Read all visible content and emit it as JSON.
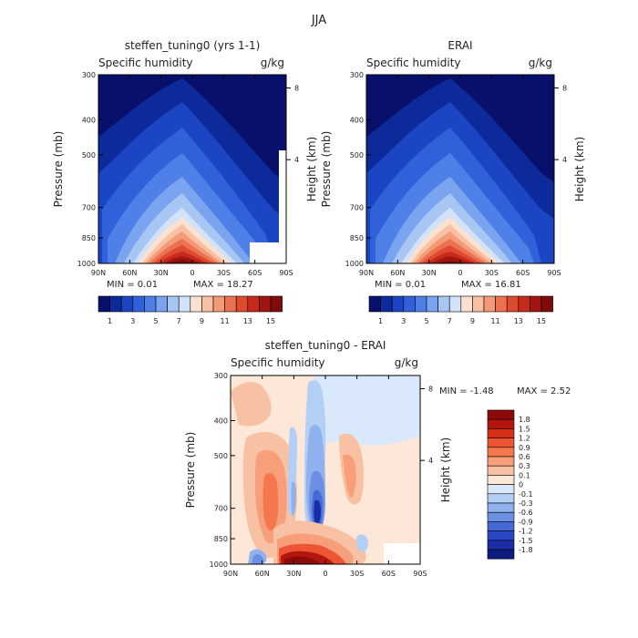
{
  "page_title": "JJA",
  "chart_data": [
    {
      "type": "heatmap",
      "title": "steffen_tuning0 (yrs 1-1)",
      "variable": "Specific humidity",
      "units": "g/kg",
      "ylabel": "Pressure (mb)",
      "y2label": "Height (km)",
      "x_ticks": [
        "90N",
        "60N",
        "30N",
        "0",
        "30S",
        "60S",
        "90S"
      ],
      "y_ticks": [
        "300",
        "400",
        "500",
        "700",
        "850",
        "1000"
      ],
      "y2_ticks": [
        "8",
        "4"
      ],
      "min_label": "MIN =    0.01",
      "max_label": "MAX =  18.27",
      "colorbar_labels": [
        "1",
        "3",
        "5",
        "7",
        "9",
        "11",
        "13",
        "15"
      ],
      "colors": [
        "#08106b",
        "#0d2a9a",
        "#1c45c4",
        "#3061da",
        "#4f80e8",
        "#7aa4ef",
        "#a8c6f4",
        "#d2e3f9",
        "#fbe1d0",
        "#f8c1a3",
        "#f39b77",
        "#ec7150",
        "#de4a2f",
        "#c52a1a",
        "#a21612",
        "#7f0b0b"
      ],
      "peak_value": 18.27
    },
    {
      "type": "heatmap",
      "title": "ERAI",
      "variable": "Specific humidity",
      "units": "g/kg",
      "ylabel": "Pressure (mb)",
      "y2label": "Height (km)",
      "x_ticks": [
        "90N",
        "60N",
        "30N",
        "0",
        "30S",
        "60S",
        "90S"
      ],
      "y_ticks": [
        "300",
        "400",
        "500",
        "700",
        "850",
        "1000"
      ],
      "y2_ticks": [
        "8",
        "4"
      ],
      "min_label": "MIN =    0.01",
      "max_label": "MAX =  16.81",
      "colorbar_labels": [
        "1",
        "3",
        "5",
        "7",
        "9",
        "11",
        "13",
        "15"
      ],
      "peak_value": 16.81
    },
    {
      "type": "heatmap",
      "title": "steffen_tuning0 - ERAI",
      "variable": "Specific humidity",
      "units": "g/kg",
      "ylabel": "Pressure (mb)",
      "y2label": "Height (km)",
      "x_ticks": [
        "90N",
        "60N",
        "30N",
        "0",
        "30S",
        "60S",
        "90S"
      ],
      "y_ticks": [
        "300",
        "400",
        "500",
        "700",
        "850",
        "1000"
      ],
      "y2_ticks": [
        "8",
        "4"
      ],
      "min_label": "MIN =   -1.48",
      "max_label": "MAX =    2.52",
      "colorbar_labels": [
        "1.8",
        "1.5",
        "1.2",
        "0.9",
        "0.6",
        "0.3",
        "0.1",
        "0",
        "-0.1",
        "-0.3",
        "-0.6",
        "-0.9",
        "-1.2",
        "-1.5",
        "-1.8"
      ],
      "colors": [
        "#8c0a0a",
        "#b3160f",
        "#d83018",
        "#ee5535",
        "#f4774e",
        "#f69f7a",
        "#f9c1a3",
        "#fde7d8",
        "#d9e8fb",
        "#b4cff5",
        "#8fb1ee",
        "#6a8fe3",
        "#4569d6",
        "#2a48c4",
        "#1a2ca6",
        "#0d1a80"
      ]
    }
  ]
}
